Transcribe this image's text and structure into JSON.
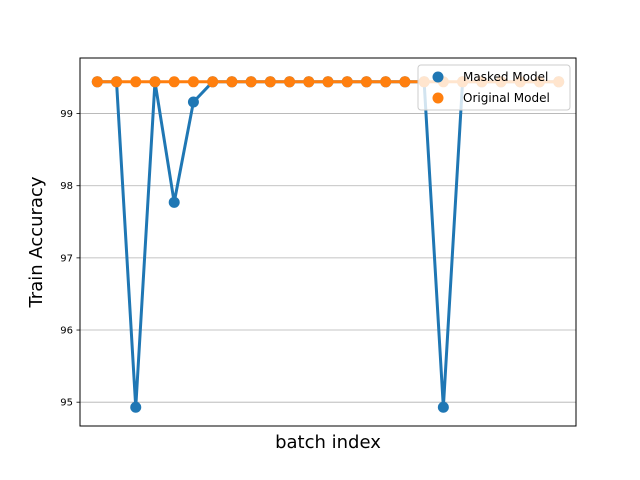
{
  "chart_data": {
    "type": "line",
    "xlabel": "batch index",
    "ylabel": "Train Accuracy",
    "ylim": [
      94.67,
      99.77
    ],
    "yticks": [
      95,
      96,
      97,
      98,
      99
    ],
    "grid": "horizontal",
    "legend_position": "top-right",
    "x": [
      0,
      1,
      2,
      3,
      4,
      5,
      6,
      7,
      8,
      9,
      10,
      11,
      12,
      13,
      14,
      15,
      16,
      17,
      18,
      19,
      20,
      21,
      22,
      23,
      24
    ],
    "series": [
      {
        "name": "Masked Model",
        "color": "#1f77b4",
        "values": [
          99.44,
          99.44,
          94.93,
          99.44,
          97.77,
          99.16,
          99.44,
          99.44,
          99.44,
          99.44,
          99.44,
          99.44,
          99.44,
          99.44,
          99.44,
          99.44,
          99.44,
          99.44,
          94.93,
          99.44,
          99.44,
          99.44,
          99.44,
          99.44,
          99.44
        ]
      },
      {
        "name": "Original Model",
        "color": "#ff7f0e",
        "values": [
          99.44,
          99.44,
          99.44,
          99.44,
          99.44,
          99.44,
          99.44,
          99.44,
          99.44,
          99.44,
          99.44,
          99.44,
          99.44,
          99.44,
          99.44,
          99.44,
          99.44,
          99.44,
          99.44,
          99.44,
          99.44,
          99.44,
          99.44,
          99.44,
          99.44
        ]
      }
    ]
  }
}
